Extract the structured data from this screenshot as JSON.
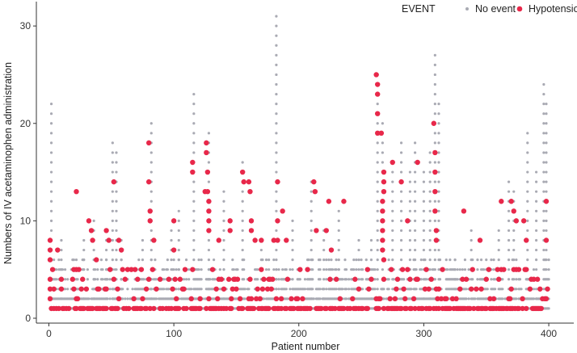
{
  "chart_data": {
    "type": "scatter",
    "xlabel": "Patient number",
    "ylabel": "Numbers of IV acetaminophen administration",
    "xlim": [
      -10,
      420
    ],
    "ylim": [
      -0.5,
      32.5
    ],
    "x_ticks": [
      0,
      100,
      200,
      300,
      400
    ],
    "y_ticks": [
      0,
      10,
      20,
      30
    ],
    "grid": false,
    "legend": {
      "position": "top-right",
      "title": "EVENT",
      "entries": [
        {
          "label": "No event",
          "color": "#a9aab3"
        },
        {
          "label": "Hypotension",
          "color": "#e8284a"
        }
      ]
    },
    "series": [
      {
        "name": "No event",
        "color": "#a9aab3",
        "max_per_patient": [
          [
            2,
            22
          ],
          [
            10,
            8
          ],
          [
            22,
            6
          ],
          [
            28,
            8
          ],
          [
            36,
            10
          ],
          [
            46,
            9
          ],
          [
            51,
            18
          ],
          [
            54,
            17
          ],
          [
            58,
            8
          ],
          [
            75,
            8
          ],
          [
            82,
            20
          ],
          [
            98,
            9
          ],
          [
            104,
            11
          ],
          [
            116,
            23
          ],
          [
            128,
            19
          ],
          [
            140,
            13
          ],
          [
            155,
            16
          ],
          [
            170,
            8
          ],
          [
            182,
            31
          ],
          [
            195,
            10
          ],
          [
            210,
            14
          ],
          [
            220,
            9
          ],
          [
            232,
            11
          ],
          [
            248,
            8
          ],
          [
            258,
            8
          ],
          [
            263,
            25
          ],
          [
            267,
            20
          ],
          [
            275,
            16
          ],
          [
            282,
            18
          ],
          [
            289,
            15
          ],
          [
            293,
            18
          ],
          [
            300,
            15
          ],
          [
            305,
            17
          ],
          [
            309,
            27
          ],
          [
            312,
            22
          ],
          [
            325,
            6
          ],
          [
            338,
            9
          ],
          [
            350,
            6
          ],
          [
            360,
            9
          ],
          [
            368,
            14
          ],
          [
            372,
            13
          ],
          [
            383,
            19
          ],
          [
            390,
            15
          ],
          [
            396,
            24
          ],
          [
            398,
            22
          ]
        ]
      },
      {
        "name": "Hypotension",
        "color": "#e8284a",
        "points": [
          [
            1,
            8
          ],
          [
            1,
            7
          ],
          [
            1,
            6
          ],
          [
            1,
            4
          ],
          [
            1,
            3
          ],
          [
            7,
            7
          ],
          [
            10,
            4
          ],
          [
            20,
            5
          ],
          [
            22,
            13
          ],
          [
            22,
            5
          ],
          [
            30,
            3
          ],
          [
            32,
            10
          ],
          [
            34,
            9
          ],
          [
            35,
            8
          ],
          [
            38,
            6
          ],
          [
            46,
            9
          ],
          [
            48,
            8
          ],
          [
            52,
            14
          ],
          [
            56,
            8
          ],
          [
            58,
            7
          ],
          [
            80,
            18
          ],
          [
            80,
            14
          ],
          [
            81,
            11
          ],
          [
            81,
            10
          ],
          [
            84,
            8
          ],
          [
            100,
            10
          ],
          [
            100,
            7
          ],
          [
            115,
            16
          ],
          [
            115,
            15
          ],
          [
            125,
            13
          ],
          [
            126,
            18
          ],
          [
            126,
            17
          ],
          [
            127,
            15
          ],
          [
            127,
            13
          ],
          [
            128,
            12
          ],
          [
            128,
            11
          ],
          [
            128,
            10
          ],
          [
            128,
            9
          ],
          [
            136,
            8
          ],
          [
            145,
            10
          ],
          [
            145,
            9
          ],
          [
            155,
            15
          ],
          [
            156,
            14
          ],
          [
            160,
            14
          ],
          [
            161,
            13
          ],
          [
            162,
            10
          ],
          [
            162,
            9
          ],
          [
            165,
            8
          ],
          [
            170,
            8
          ],
          [
            172,
            4
          ],
          [
            180,
            8
          ],
          [
            183,
            14
          ],
          [
            183,
            10
          ],
          [
            183,
            8
          ],
          [
            187,
            11
          ],
          [
            190,
            8
          ],
          [
            212,
            14
          ],
          [
            213,
            13
          ],
          [
            214,
            9
          ],
          [
            222,
            9
          ],
          [
            224,
            12
          ],
          [
            226,
            7
          ],
          [
            236,
            12
          ],
          [
            262,
            25
          ],
          [
            263,
            24
          ],
          [
            263,
            23
          ],
          [
            263,
            21
          ],
          [
            263,
            19
          ],
          [
            266,
            19
          ],
          [
            268,
            15
          ],
          [
            268,
            14
          ],
          [
            268,
            13
          ],
          [
            267,
            12
          ],
          [
            267,
            11
          ],
          [
            267,
            10
          ],
          [
            267,
            9
          ],
          [
            267,
            8
          ],
          [
            267,
            7
          ],
          [
            268,
            6
          ],
          [
            275,
            16
          ],
          [
            282,
            14
          ],
          [
            287,
            10
          ],
          [
            295,
            16
          ],
          [
            308,
            20
          ],
          [
            309,
            17
          ],
          [
            309,
            15
          ],
          [
            309,
            13
          ],
          [
            309,
            11
          ],
          [
            310,
            9
          ],
          [
            310,
            8
          ],
          [
            332,
            11
          ],
          [
            345,
            8
          ],
          [
            362,
            12
          ],
          [
            370,
            12
          ],
          [
            372,
            11
          ],
          [
            374,
            10
          ],
          [
            380,
            10
          ],
          [
            382,
            8
          ],
          [
            398,
            12
          ],
          [
            398,
            8
          ]
        ]
      }
    ]
  }
}
